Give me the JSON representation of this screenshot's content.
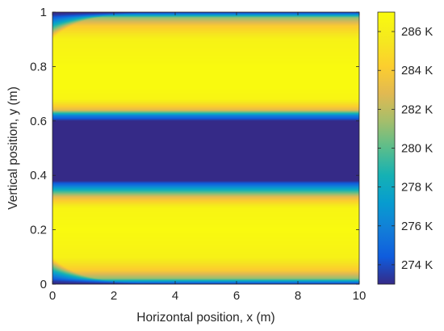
{
  "chart_data": {
    "type": "heatmap",
    "title": "",
    "xlabel": "Horizontal position, x (m)",
    "ylabel": "Vertical position, y (m)",
    "xlim": [
      0,
      10
    ],
    "ylim": [
      0,
      1
    ],
    "xticks": [
      "0",
      "2",
      "4",
      "6",
      "8",
      "10"
    ],
    "yticks": [
      "0",
      "0.2",
      "0.4",
      "0.6",
      "0.8",
      "1"
    ],
    "colorbar": {
      "min": 273,
      "max": 287,
      "ticks": [
        274,
        276,
        278,
        280,
        282,
        284,
        286
      ],
      "tick_labels": [
        "274 K",
        "276 K",
        "278 K",
        "280 K",
        "282 K",
        "284 K",
        "286 K"
      ],
      "unit": "K",
      "colormap": "parula",
      "position": "right"
    },
    "temperature_profile_far_field": {
      "y": [
        0.0,
        0.02,
        0.05,
        0.1,
        0.2,
        0.28,
        0.32,
        0.36,
        0.38,
        0.6,
        0.62,
        0.64,
        0.68,
        0.72,
        0.8,
        0.9,
        0.95,
        0.98,
        1.0
      ],
      "T": [
        273,
        281,
        284,
        286.3,
        286.9,
        286.5,
        283,
        276,
        273,
        273,
        276,
        283,
        286.5,
        286.9,
        286.9,
        286.3,
        284,
        281,
        273
      ]
    },
    "cold_boundary_layer": {
      "edges": [
        "top",
        "bottom"
      ],
      "decay_x": 0.9,
      "initial_thickness_y": 0.1
    },
    "grid": false,
    "legend": "none"
  }
}
